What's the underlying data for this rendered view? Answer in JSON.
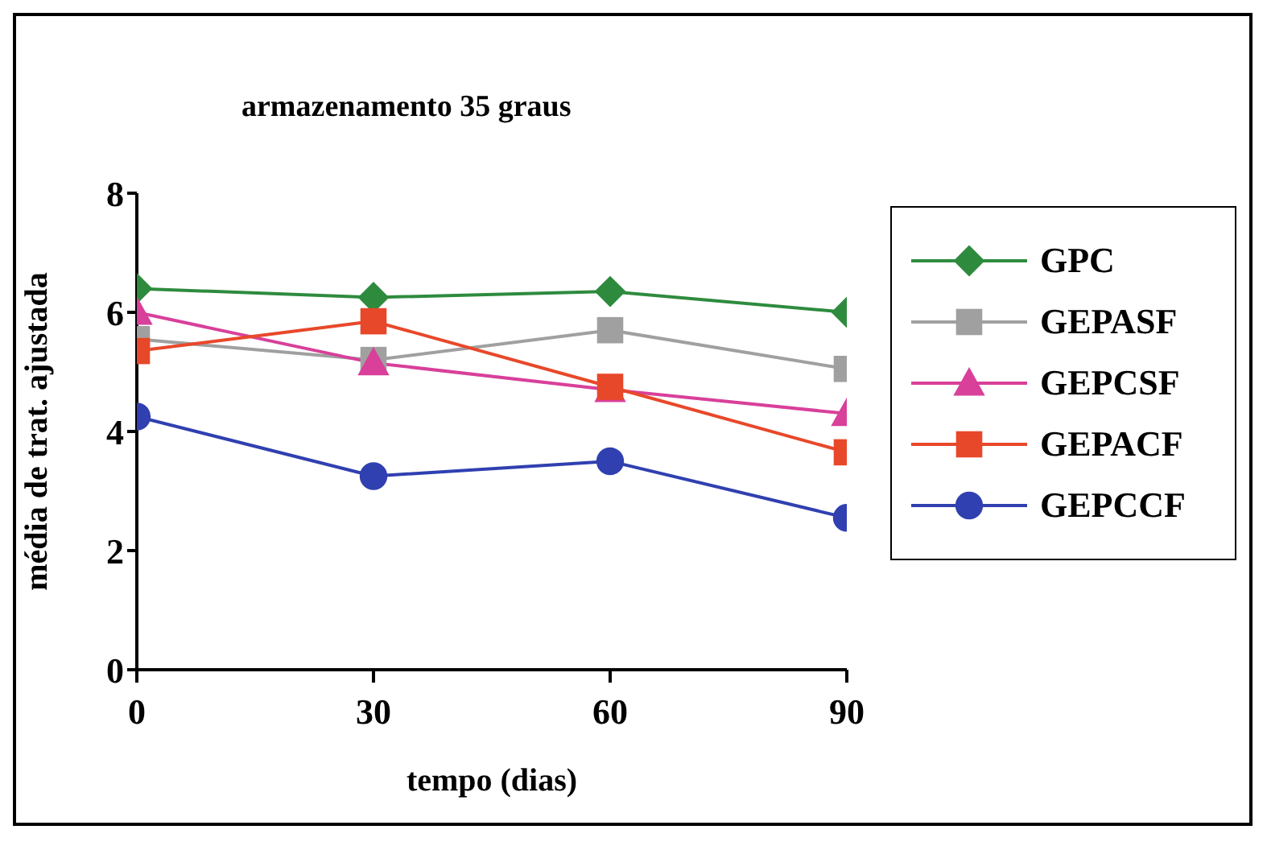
{
  "chart_data": {
    "type": "line",
    "title": "armazenamento 35 graus",
    "xlabel": "tempo (dias)",
    "ylabel": "média de trat. ajustada",
    "x": [
      0,
      30,
      60,
      90
    ],
    "xlim": [
      0,
      90
    ],
    "xticks": [
      0,
      30,
      60,
      90
    ],
    "ylim": [
      0,
      8
    ],
    "yticks": [
      0,
      2,
      4,
      6,
      8
    ],
    "grid": false,
    "legend": "right",
    "line_style": "solid",
    "series": [
      {
        "name": "GPC",
        "color": "#2e8b3e",
        "marker": "diamond",
        "values": [
          6.4,
          6.25,
          6.35,
          6.0
        ]
      },
      {
        "name": "GEPASF",
        "color": "#a0a0a0",
        "marker": "square",
        "values": [
          5.55,
          5.2,
          5.7,
          5.05
        ]
      },
      {
        "name": "GEPCSF",
        "color": "#d8409a",
        "marker": "triangle",
        "values": [
          6.0,
          5.15,
          4.7,
          4.3
        ]
      },
      {
        "name": "GEPACF",
        "color": "#e8482a",
        "marker": "square",
        "values": [
          5.35,
          5.85,
          4.75,
          3.65
        ]
      },
      {
        "name": "GEPCCF",
        "color": "#3040b0",
        "marker": "circle",
        "values": [
          4.25,
          3.25,
          3.5,
          2.55
        ]
      }
    ]
  }
}
